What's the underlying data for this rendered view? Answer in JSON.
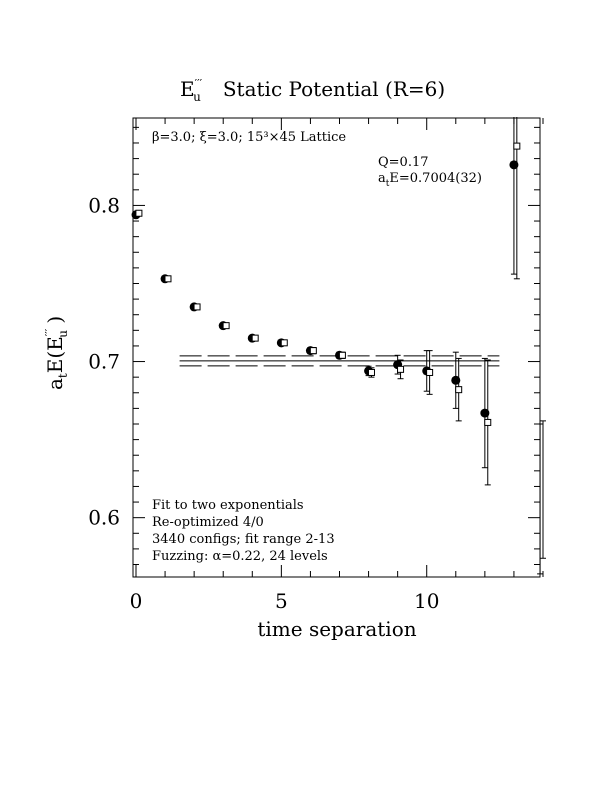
{
  "chart_data": {
    "type": "scatter",
    "title": "E″′u  Static Potential (R=6)",
    "title_main": "E",
    "title_sup": "′′′",
    "title_sub": "u",
    "title_rest": "Static Potential (R=6)",
    "xlabel": "time separation",
    "ylabel": "atE(E′′′u)",
    "ylabel_parts": {
      "a": "a",
      "a_sub": "t",
      "mid": "E(E",
      "sup": "′′′",
      "sub": "u",
      "end": " )"
    },
    "xlim": [
      0,
      14
    ],
    "ylim": [
      0.562,
      0.856
    ],
    "x_ticks": [
      0,
      5,
      10
    ],
    "y_ticks": [
      0.6,
      0.7,
      0.8
    ],
    "x_tick_labels": [
      "0",
      "5",
      "10"
    ],
    "y_tick_labels": [
      "0.6",
      "0.7",
      "0.8"
    ],
    "annotations": {
      "lattice": "β=3.0; ξ=3.0; 15³×45 Lattice",
      "q": "Q=0.17",
      "energy_prefix": "a",
      "energy_sub": "t",
      "energy_value": "E=0.7004(32)",
      "fit_lines": [
        "Fit to two exponentials",
        "Re-optimized 4/0",
        "3440 configs; fit range 2-13",
        "Fuzzing: α=0.22, 24 levels"
      ]
    },
    "fit": {
      "value": 0.7004,
      "error": 0.0032,
      "x_range": [
        1.5,
        12.5
      ]
    },
    "series": [
      {
        "marker": "filled-circle",
        "x": [
          0,
          1,
          2,
          3,
          4,
          5,
          6,
          7,
          8,
          9,
          10,
          11,
          12,
          13
        ],
        "y": [
          0.794,
          0.753,
          0.735,
          0.723,
          0.715,
          0.712,
          0.707,
          0.704,
          0.694,
          0.698,
          0.694,
          0.688,
          0.667,
          0.826
        ],
        "err": [
          0.001,
          0.001,
          0.001,
          0.001,
          0.001,
          0.001,
          0.002,
          0.002,
          0.003,
          0.006,
          0.013,
          0.018,
          0.035,
          0.07
        ]
      },
      {
        "marker": "open-square",
        "x": [
          0.1,
          1.1,
          2.1,
          3.1,
          4.1,
          5.1,
          6.1,
          7.1,
          8.1,
          9.1,
          10.1,
          11.1,
          12.1,
          13.1
        ],
        "y": [
          0.795,
          0.753,
          0.735,
          0.723,
          0.715,
          0.712,
          0.707,
          0.704,
          0.693,
          0.695,
          0.693,
          0.682,
          0.661,
          0.838
        ],
        "err": [
          0.001,
          0.001,
          0.001,
          0.001,
          0.001,
          0.001,
          0.002,
          0.002,
          0.003,
          0.006,
          0.014,
          0.02,
          0.04,
          0.085
        ]
      },
      {
        "marker": "error-bar-only",
        "x": [
          13.9,
          14.0
        ],
        "y": [
          0.612,
          0.618
        ],
        "err": [
          0.048,
          0.044
        ]
      }
    ]
  }
}
